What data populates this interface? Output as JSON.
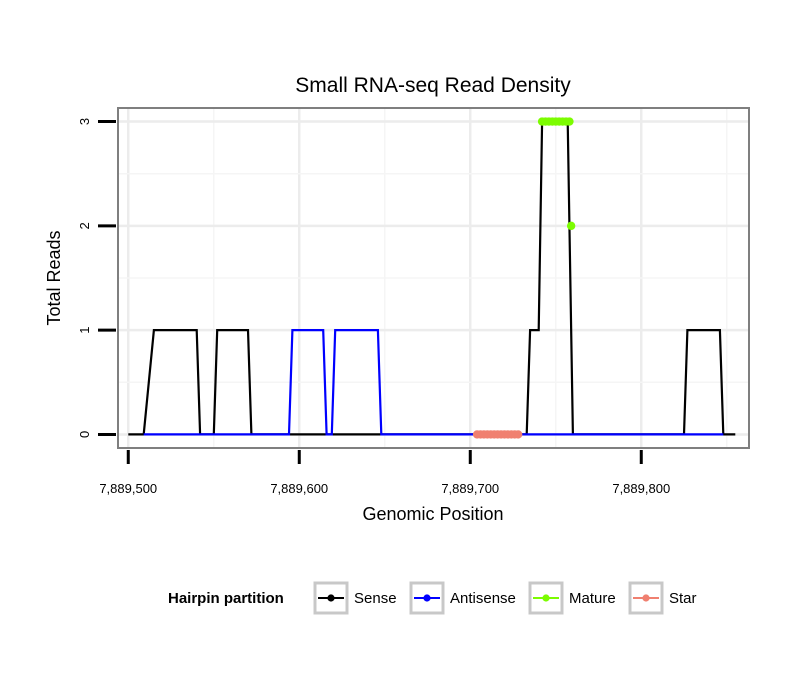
{
  "chart_data": {
    "type": "line",
    "title": "Small RNA-seq Read Density",
    "xlabel": "Genomic Position",
    "ylabel": "Total Reads",
    "xlim": [
      7889494,
      7889863
    ],
    "ylim": [
      -0.13,
      3.13
    ],
    "x_ticks": [
      7889500,
      7889600,
      7889700,
      7889800
    ],
    "x_tick_labels": [
      "7,889,500",
      "7,889,600",
      "7,889,700",
      "7,889,800"
    ],
    "y_ticks": [
      0,
      1,
      2,
      3
    ],
    "y_tick_labels": [
      "0",
      "1",
      "2",
      "3"
    ],
    "grid": true,
    "legend": {
      "title": "Hairpin partition",
      "position": "bottom",
      "entries": [
        {
          "label": "Sense",
          "color": "#000000"
        },
        {
          "label": "Antisense",
          "color": "#0000ff"
        },
        {
          "label": "Mature",
          "color": "#7cfc00"
        },
        {
          "label": "Star",
          "color": "#f08070"
        }
      ]
    },
    "series": [
      {
        "name": "Sense",
        "color": "#000000",
        "style": "line",
        "x": [
          7889500,
          7889509,
          7889515,
          7889540,
          7889542,
          7889550,
          7889552,
          7889570,
          7889572,
          7889733,
          7889735,
          7889740,
          7889742,
          7889757,
          7889760,
          7889825,
          7889827,
          7889846,
          7889848,
          7889855
        ],
        "y": [
          0,
          0,
          1,
          1,
          0,
          0,
          1,
          1,
          0,
          0,
          1,
          1,
          3,
          3,
          0,
          0,
          1,
          1,
          0,
          0
        ]
      },
      {
        "name": "Antisense",
        "color": "#0000ff",
        "style": "line",
        "x": [
          7889509,
          7889594,
          7889596,
          7889614,
          7889616,
          7889619,
          7889621,
          7889646,
          7889648,
          7889725,
          7889745,
          7889848
        ],
        "y": [
          0,
          0,
          1,
          1,
          0,
          0,
          1,
          1,
          0,
          0,
          0,
          0
        ]
      },
      {
        "name": "Mature",
        "color": "#7cfc00",
        "style": "points",
        "x": [
          7889742,
          7889744,
          7889746,
          7889748,
          7889750,
          7889752,
          7889754,
          7889756,
          7889758,
          7889759
        ],
        "y": [
          3,
          3,
          3,
          3,
          3,
          3,
          3,
          3,
          3,
          2
        ]
      },
      {
        "name": "Star",
        "color": "#f08070",
        "style": "points",
        "x": [
          7889704,
          7889706,
          7889708,
          7889710,
          7889712,
          7889714,
          7889716,
          7889718,
          7889720,
          7889722,
          7889724,
          7889726,
          7889728
        ],
        "y": [
          0,
          0,
          0,
          0,
          0,
          0,
          0,
          0,
          0,
          0,
          0,
          0,
          0
        ]
      }
    ]
  }
}
